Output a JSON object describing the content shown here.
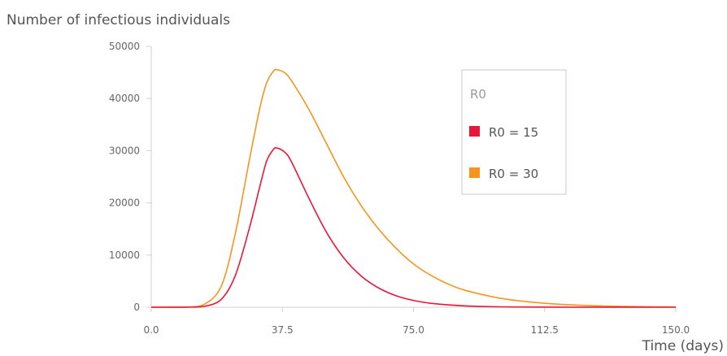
{
  "chart_data": {
    "type": "line",
    "title": "",
    "ylabel": "Number of infectious individuals",
    "xlabel": "Time (days)",
    "xlim": [
      0,
      150
    ],
    "ylim": [
      0,
      50000
    ],
    "x_ticks": [
      "0.0",
      "37.5",
      "75.0",
      "112.5",
      "150.0"
    ],
    "y_ticks": [
      "0",
      "10000",
      "20000",
      "30000",
      "40000",
      "50000"
    ],
    "grid": false,
    "legend": {
      "title": "R0",
      "position": "top-right"
    },
    "series": [
      {
        "name": "R0 = 15",
        "color": "#e8173a",
        "points": [
          [
            0,
            0
          ],
          [
            10,
            10
          ],
          [
            15,
            150
          ],
          [
            20,
            1500
          ],
          [
            24,
            6000
          ],
          [
            28,
            15000
          ],
          [
            31,
            23000
          ],
          [
            33,
            28000
          ],
          [
            35,
            30300
          ],
          [
            36,
            30500
          ],
          [
            38,
            29800
          ],
          [
            40,
            28000
          ],
          [
            45,
            21000
          ],
          [
            50,
            14500
          ],
          [
            55,
            9500
          ],
          [
            60,
            6000
          ],
          [
            65,
            3700
          ],
          [
            70,
            2200
          ],
          [
            75,
            1300
          ],
          [
            80,
            750
          ],
          [
            90,
            250
          ],
          [
            100,
            80
          ],
          [
            110,
            30
          ],
          [
            125,
            10
          ],
          [
            150,
            0
          ]
        ]
      },
      {
        "name": "R0 = 30",
        "color": "#f7941d",
        "points": [
          [
            0,
            0
          ],
          [
            10,
            30
          ],
          [
            15,
            500
          ],
          [
            20,
            4000
          ],
          [
            24,
            14000
          ],
          [
            28,
            28000
          ],
          [
            31,
            38000
          ],
          [
            33,
            43000
          ],
          [
            35,
            45300
          ],
          [
            36,
            45500
          ],
          [
            38,
            45000
          ],
          [
            40,
            43500
          ],
          [
            45,
            38000
          ],
          [
            50,
            31500
          ],
          [
            55,
            25000
          ],
          [
            60,
            19500
          ],
          [
            65,
            15000
          ],
          [
            70,
            11300
          ],
          [
            75,
            8300
          ],
          [
            80,
            6100
          ],
          [
            85,
            4400
          ],
          [
            90,
            3200
          ],
          [
            100,
            1700
          ],
          [
            110,
            900
          ],
          [
            120,
            450
          ],
          [
            130,
            220
          ],
          [
            140,
            100
          ],
          [
            150,
            50
          ]
        ]
      }
    ]
  }
}
